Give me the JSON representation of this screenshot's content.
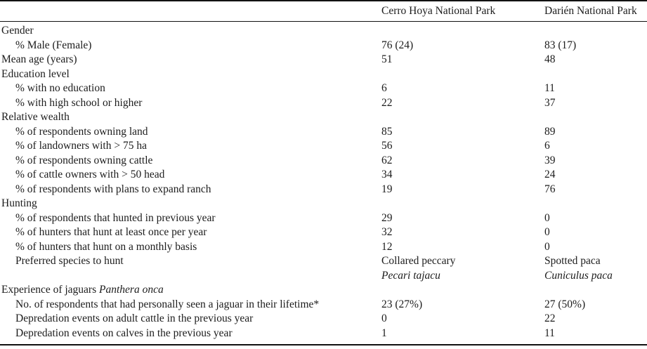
{
  "table": {
    "header": {
      "col1": "Cerro Hoya National Park",
      "col2": "Darién National Park"
    },
    "rows": [
      {
        "label": "Gender",
        "indent": false,
        "v1": "",
        "v2": ""
      },
      {
        "label": "% Male (Female)",
        "indent": true,
        "v1": "76 (24)",
        "v2": "83 (17)"
      },
      {
        "label": "Mean age (years)",
        "indent": false,
        "v1": "51",
        "v2": "48"
      },
      {
        "label": "Education level",
        "indent": false,
        "v1": "",
        "v2": ""
      },
      {
        "label": "% with no education",
        "indent": true,
        "v1": "6",
        "v2": "11"
      },
      {
        "label": "% with high school or higher",
        "indent": true,
        "v1": "22",
        "v2": "37"
      },
      {
        "label": "Relative wealth",
        "indent": false,
        "v1": "",
        "v2": ""
      },
      {
        "label": "% of respondents owning land",
        "indent": true,
        "v1": "85",
        "v2": "89"
      },
      {
        "label": "% of landowners with > 75 ha",
        "indent": true,
        "v1": "56",
        "v2": "6"
      },
      {
        "label": "% of respondents owning cattle",
        "indent": true,
        "v1": "62",
        "v2": "39"
      },
      {
        "label": "% of cattle owners with > 50 head",
        "indent": true,
        "v1": "34",
        "v2": "24"
      },
      {
        "label": "% of respondents with plans to expand ranch",
        "indent": true,
        "v1": "19",
        "v2": "76"
      },
      {
        "label": "Hunting",
        "indent": false,
        "v1": "",
        "v2": ""
      },
      {
        "label": "% of respondents that hunted in previous year",
        "indent": true,
        "v1": "29",
        "v2": "0"
      },
      {
        "label": "% of hunters that hunt at least once per year",
        "indent": true,
        "v1": "32",
        "v2": "0"
      },
      {
        "label": "% of hunters that hunt on a monthly basis",
        "indent": true,
        "v1": "12",
        "v2": "0"
      },
      {
        "label": "Preferred species to hunt",
        "indent": true,
        "v1": "Collared peccary",
        "v2": "Spotted paca"
      },
      {
        "label": "",
        "indent": true,
        "v1": "Pecari tajacu",
        "v2": "Cuniculus paca",
        "italic_values": true
      },
      {
        "label": "Experience of jaguars ",
        "label_italic": "Panthera onca",
        "indent": false,
        "v1": "",
        "v2": ""
      },
      {
        "label": "No. of respondents that had personally seen a jaguar in their lifetime*",
        "indent": true,
        "v1": "23 (27%)",
        "v2": "27 (50%)"
      },
      {
        "label": "Depredation events on adult cattle in the previous year",
        "indent": true,
        "v1": "0",
        "v2": "22"
      },
      {
        "label": "Depredation events on calves in the previous year",
        "indent": true,
        "v1": "1",
        "v2": "11"
      }
    ]
  }
}
